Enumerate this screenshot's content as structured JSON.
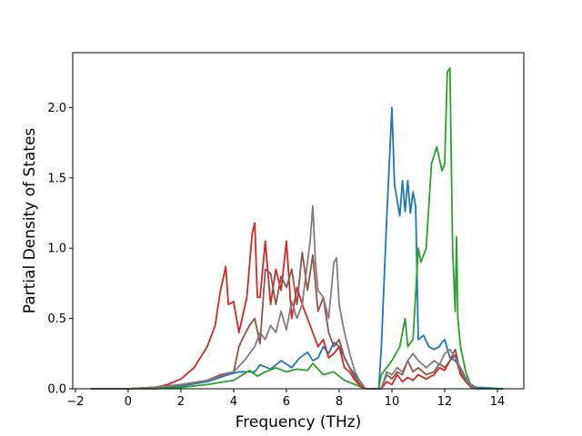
{
  "chart_data": {
    "type": "line",
    "title": "",
    "xlabel": "Frequency (THz)",
    "ylabel": "Partial Density of States",
    "xlim": [
      -2.1,
      15.0
    ],
    "ylim": [
      0.0,
      2.39
    ],
    "xticks": [
      -2,
      0,
      2,
      4,
      6,
      8,
      10,
      12,
      14
    ],
    "xtick_labels": [
      "−2",
      "0",
      "2",
      "4",
      "6",
      "8",
      "10",
      "12",
      "14"
    ],
    "yticks": [
      0.0,
      0.5,
      1.0,
      1.5,
      2.0
    ],
    "ytick_labels": [
      "0.0",
      "0.5",
      "1.0",
      "1.5",
      "2.0"
    ],
    "grid": false,
    "legend": "none",
    "series": [
      {
        "color": "#1f77b4",
        "x": [
          -1.4,
          0,
          1,
          2,
          3,
          3.8,
          4.2,
          4.8,
          5.0,
          5.4,
          5.8,
          6.2,
          6.5,
          6.8,
          7.0,
          7.2,
          7.4,
          7.6,
          7.8,
          8.0,
          8.4,
          8.8,
          9.0,
          9.5,
          9.6,
          9.8,
          10.0,
          10.1,
          10.3,
          10.4,
          10.5,
          10.6,
          10.7,
          10.8,
          10.9,
          11.0,
          11.2,
          11.4,
          11.6,
          11.8,
          11.9,
          12.0,
          12.2,
          12.4,
          12.6,
          12.8,
          13.0,
          13.2,
          14.2
        ],
        "y": [
          0,
          0,
          0.01,
          0.02,
          0.05,
          0.1,
          0.12,
          0.12,
          0.17,
          0.14,
          0.2,
          0.15,
          0.22,
          0.26,
          0.2,
          0.22,
          0.3,
          0.25,
          0.33,
          0.3,
          0.15,
          0.05,
          0,
          0,
          0.3,
          1.2,
          2.0,
          1.45,
          1.23,
          1.48,
          1.26,
          1.48,
          1.25,
          1.4,
          1.3,
          0.35,
          0.38,
          0.3,
          0.28,
          0.3,
          0.33,
          0.35,
          0.22,
          0.2,
          0.15,
          0.07,
          0.03,
          0.01,
          0
        ]
      },
      {
        "color": "#2ca02c",
        "x": [
          -1.4,
          0,
          1,
          2,
          3,
          4,
          4.6,
          4.9,
          5.2,
          5.6,
          6.0,
          6.4,
          6.8,
          7.0,
          7.4,
          7.8,
          8.2,
          8.6,
          9.0,
          9.5,
          9.6,
          9.8,
          10.0,
          10.3,
          10.5,
          10.6,
          10.8,
          11.0,
          11.1,
          11.3,
          11.5,
          11.7,
          11.9,
          12.0,
          12.1,
          12.2,
          12.3,
          12.4,
          12.45,
          12.5,
          12.6,
          12.8,
          13.0,
          13.2,
          14.2
        ],
        "y": [
          0,
          0,
          0,
          0.01,
          0.03,
          0.06,
          0.13,
          0.09,
          0.12,
          0.15,
          0.12,
          0.14,
          0.13,
          0.18,
          0.1,
          0.12,
          0.06,
          0.03,
          0,
          0,
          0.1,
          0.15,
          0.2,
          0.3,
          0.5,
          0.3,
          0.35,
          1.0,
          0.9,
          1.0,
          1.6,
          1.72,
          1.55,
          1.6,
          2.25,
          2.28,
          1.0,
          0.55,
          1.08,
          0.5,
          0.3,
          0.12,
          0.02,
          0,
          0
        ]
      },
      {
        "color": "#d62728",
        "x": [
          -1.4,
          0,
          1,
          1.5,
          2,
          2.5,
          3.0,
          3.3,
          3.5,
          3.6,
          3.7,
          3.8,
          4.0,
          4.2,
          4.5,
          4.7,
          4.8,
          4.9,
          5.0,
          5.2,
          5.4,
          5.6,
          5.8,
          6.0,
          6.2,
          6.4,
          6.6,
          6.8,
          7.0,
          7.2,
          7.4,
          7.6,
          7.8,
          8.0,
          8.2,
          8.4,
          8.6,
          8.8,
          9.0,
          9.6,
          9.8,
          10.0,
          10.2,
          10.4,
          10.6,
          10.8,
          11.0,
          11.3,
          11.6,
          11.8,
          12.0,
          12.2,
          12.4,
          12.6,
          12.8,
          13.0,
          13.2
        ],
        "y": [
          0,
          0,
          0.01,
          0.03,
          0.07,
          0.15,
          0.3,
          0.45,
          0.7,
          0.78,
          0.87,
          0.6,
          0.62,
          0.4,
          0.65,
          1.1,
          1.18,
          0.65,
          0.65,
          1.05,
          0.6,
          0.85,
          0.7,
          1.05,
          0.5,
          0.72,
          0.6,
          0.5,
          0.4,
          0.3,
          0.35,
          0.22,
          0.25,
          0.3,
          0.15,
          0.12,
          0.06,
          0.02,
          0,
          0,
          0.05,
          0.03,
          0.1,
          0.05,
          0.08,
          0.06,
          0.1,
          0.07,
          0.1,
          0.15,
          0.13,
          0.2,
          0.24,
          0.1,
          0.05,
          0.01,
          0
        ]
      },
      {
        "color": "#8c564b",
        "x": [
          -1.4,
          0,
          1,
          2,
          3,
          3.5,
          4.0,
          4.2,
          4.4,
          4.6,
          4.8,
          5.0,
          5.2,
          5.4,
          5.6,
          5.8,
          6.0,
          6.2,
          6.4,
          6.6,
          6.8,
          7.0,
          7.2,
          7.4,
          7.6,
          7.8,
          8.0,
          8.2,
          8.4,
          8.6,
          8.8,
          9.0,
          9.6,
          9.8,
          10.0,
          10.2,
          10.4,
          10.6,
          10.8,
          11.0,
          11.3,
          11.6,
          11.8,
          12.0,
          12.2,
          12.4,
          12.6,
          12.8,
          13.0
        ],
        "y": [
          0,
          0,
          0.01,
          0.03,
          0.06,
          0.1,
          0.12,
          0.3,
          0.38,
          0.45,
          0.5,
          0.32,
          0.85,
          0.82,
          0.6,
          0.8,
          0.72,
          0.85,
          0.6,
          0.97,
          0.7,
          0.95,
          0.55,
          0.65,
          0.4,
          0.3,
          0.35,
          0.22,
          0.15,
          0.08,
          0.03,
          0,
          0,
          0.1,
          0.07,
          0.12,
          0.1,
          0.2,
          0.12,
          0.15,
          0.1,
          0.12,
          0.18,
          0.15,
          0.2,
          0.28,
          0.12,
          0.05,
          0.01
        ]
      },
      {
        "color": "#8a787d",
        "x": [
          -1.4,
          0,
          1,
          2,
          3,
          3.5,
          4.0,
          4.4,
          4.6,
          4.8,
          5.0,
          5.2,
          5.4,
          5.6,
          5.8,
          6.0,
          6.2,
          6.4,
          6.6,
          6.8,
          6.9,
          7.0,
          7.1,
          7.2,
          7.4,
          7.6,
          7.8,
          7.9,
          8.0,
          8.2,
          8.4,
          8.6,
          8.8,
          9.0,
          9.6,
          9.8,
          10.0,
          10.2,
          10.4,
          10.6,
          10.8,
          11.0,
          11.3,
          11.6,
          11.8,
          12.0,
          12.2,
          12.4,
          12.6,
          12.8,
          13.0,
          13.3
        ],
        "y": [
          0,
          0,
          0.01,
          0.03,
          0.06,
          0.09,
          0.12,
          0.2,
          0.25,
          0.3,
          0.4,
          0.35,
          0.45,
          0.4,
          0.55,
          0.42,
          0.62,
          0.5,
          0.6,
          0.9,
          1.05,
          1.3,
          0.9,
          0.7,
          0.65,
          0.5,
          0.9,
          0.93,
          0.6,
          0.4,
          0.25,
          0.12,
          0.05,
          0,
          0,
          0.12,
          0.1,
          0.15,
          0.12,
          0.2,
          0.25,
          0.2,
          0.15,
          0.2,
          0.17,
          0.25,
          0.28,
          0.22,
          0.15,
          0.08,
          0.02,
          0
        ]
      }
    ]
  }
}
